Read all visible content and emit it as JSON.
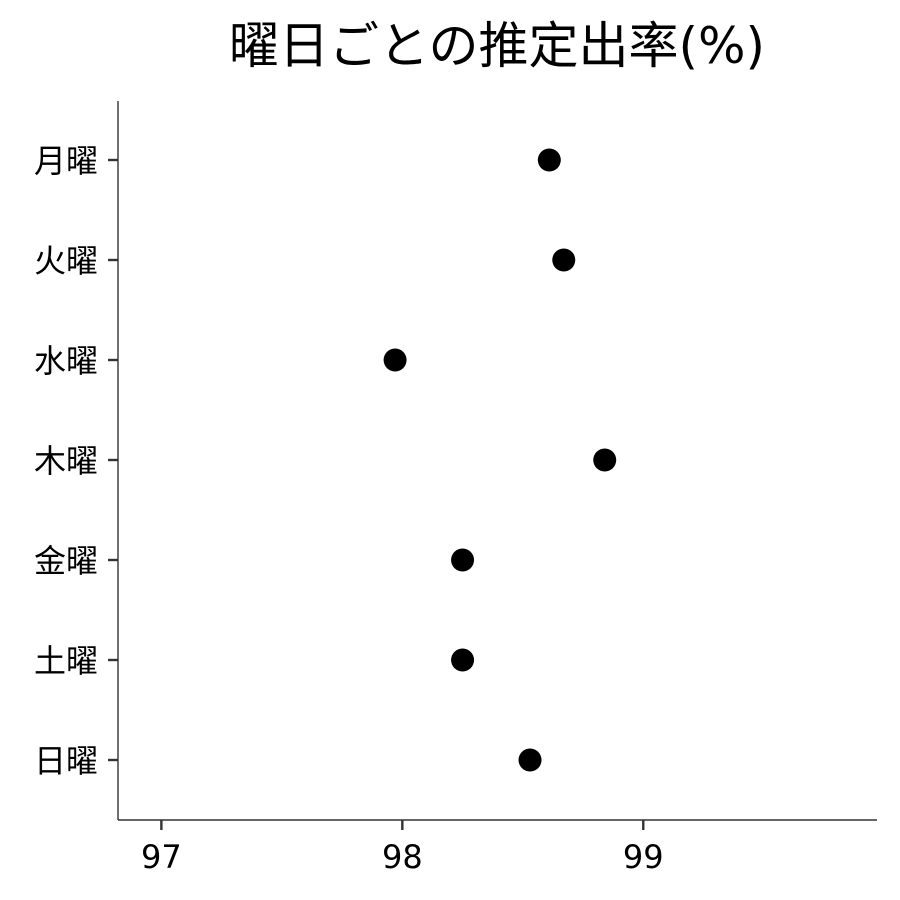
{
  "chart_data": {
    "type": "scatter",
    "title": "曜日ごとの推定出率(%)",
    "xlabel": "",
    "ylabel": "",
    "categories": [
      "月曜",
      "火曜",
      "水曜",
      "木曜",
      "金曜",
      "土曜",
      "日曜"
    ],
    "values": [
      98.61,
      98.67,
      97.97,
      98.84,
      98.25,
      98.25,
      98.53
    ],
    "xlim": [
      96.82,
      99.97
    ],
    "xticks": [
      97,
      98,
      99
    ],
    "xtick_labels": [
      "97",
      "98",
      "99"
    ],
    "grid": false,
    "point_color": "#000000"
  }
}
